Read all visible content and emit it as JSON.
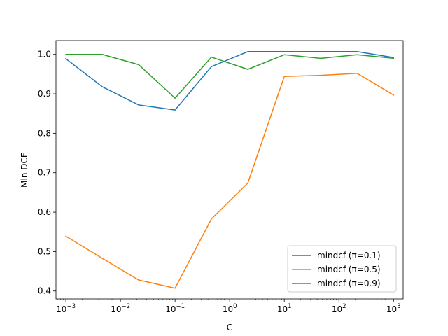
{
  "chart_data": {
    "type": "line",
    "title": "",
    "xlabel": "C",
    "ylabel": "Min DCF",
    "xscale": "log",
    "xlim": [
      0.00066,
      1500
    ],
    "ylim": [
      0.38,
      1.035
    ],
    "xticks": [
      {
        "value": 0.001,
        "base": "10",
        "exp": "−3"
      },
      {
        "value": 0.01,
        "base": "10",
        "exp": "−2"
      },
      {
        "value": 0.1,
        "base": "10",
        "exp": "−1"
      },
      {
        "value": 1,
        "base": "10",
        "exp": "0"
      },
      {
        "value": 10,
        "base": "10",
        "exp": "1"
      },
      {
        "value": 100,
        "base": "10",
        "exp": "2"
      },
      {
        "value": 1000,
        "base": "10",
        "exp": "3"
      }
    ],
    "yticks": [
      {
        "value": 0.4,
        "label": "0.4"
      },
      {
        "value": 0.5,
        "label": "0.5"
      },
      {
        "value": 0.6,
        "label": "0.6"
      },
      {
        "value": 0.7,
        "label": "0.7"
      },
      {
        "value": 0.8,
        "label": "0.8"
      },
      {
        "value": 0.9,
        "label": "0.9"
      },
      {
        "value": 1.0,
        "label": "1.0"
      }
    ],
    "x": [
      0.001,
      0.00464,
      0.0215,
      0.1,
      0.464,
      2.15,
      10,
      46.4,
      215,
      1000
    ],
    "series": [
      {
        "name": "mindcf (π=0.1)",
        "color": "#1f77b4",
        "values": [
          0.989,
          0.918,
          0.872,
          0.859,
          0.969,
          1.007,
          1.007,
          1.007,
          1.007,
          0.992
        ]
      },
      {
        "name": "mindcf (π=0.5)",
        "color": "#ff7f0e",
        "values": [
          0.539,
          0.483,
          0.428,
          0.407,
          0.583,
          0.674,
          0.944,
          0.947,
          0.952,
          0.897
        ]
      },
      {
        "name": "mindcf (π=0.9)",
        "color": "#2ca02c",
        "values": [
          1.0,
          1.0,
          0.974,
          0.889,
          0.993,
          0.962,
          0.999,
          0.99,
          0.999,
          0.99
        ]
      }
    ],
    "grid": false,
    "legend_position": "lower right"
  }
}
